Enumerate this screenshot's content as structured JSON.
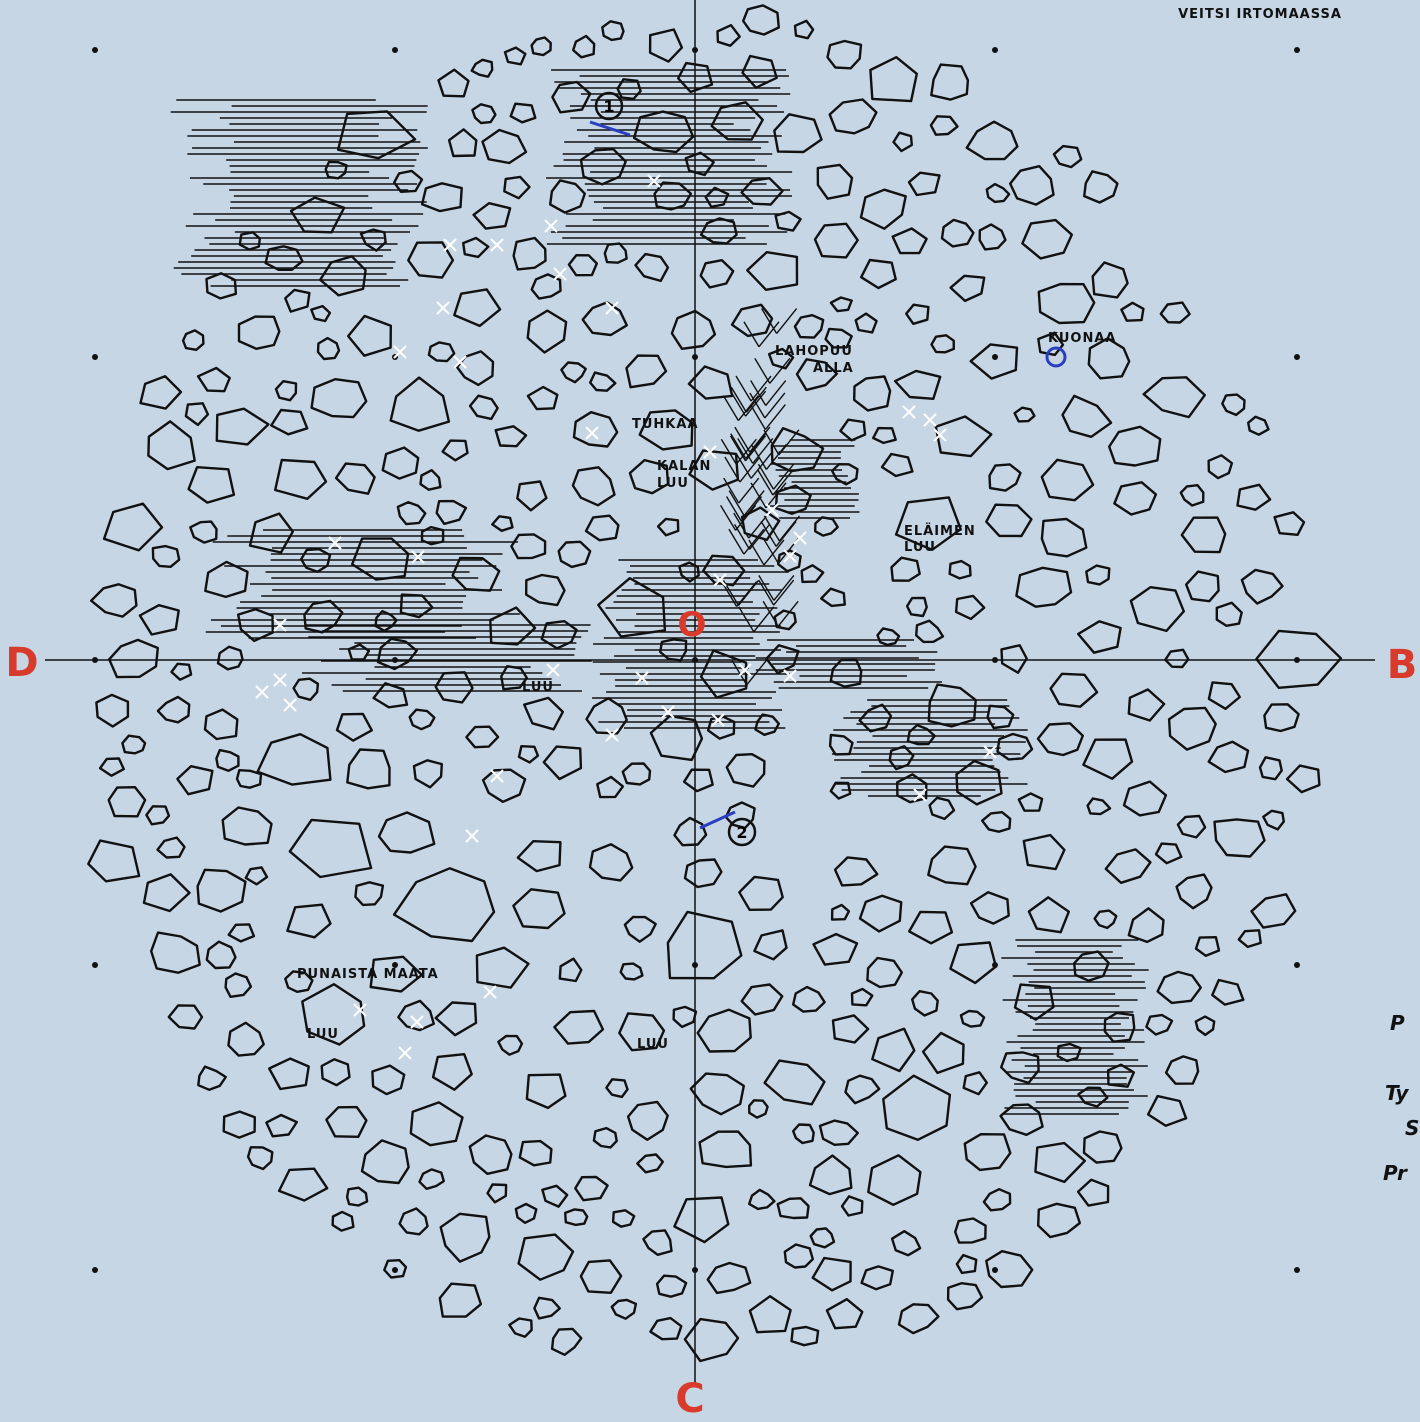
{
  "header": {
    "title": "VEITSI IRTOMAASSA"
  },
  "axes": {
    "left": "D",
    "right": "B",
    "bottom": "C",
    "center": "O"
  },
  "finds": [
    "1",
    "2"
  ],
  "annotations": [
    "LAHOPUU",
    "ALLA",
    "TUHKAA",
    "KALAN",
    "LUU",
    "ELÄIMEN",
    "LUU",
    "KUONAA",
    "LUU",
    "PUNAISTA MAATA",
    "LUU",
    "LUU"
  ],
  "margin_fragments": [
    "P",
    "Ty",
    "S",
    "Pr"
  ]
}
